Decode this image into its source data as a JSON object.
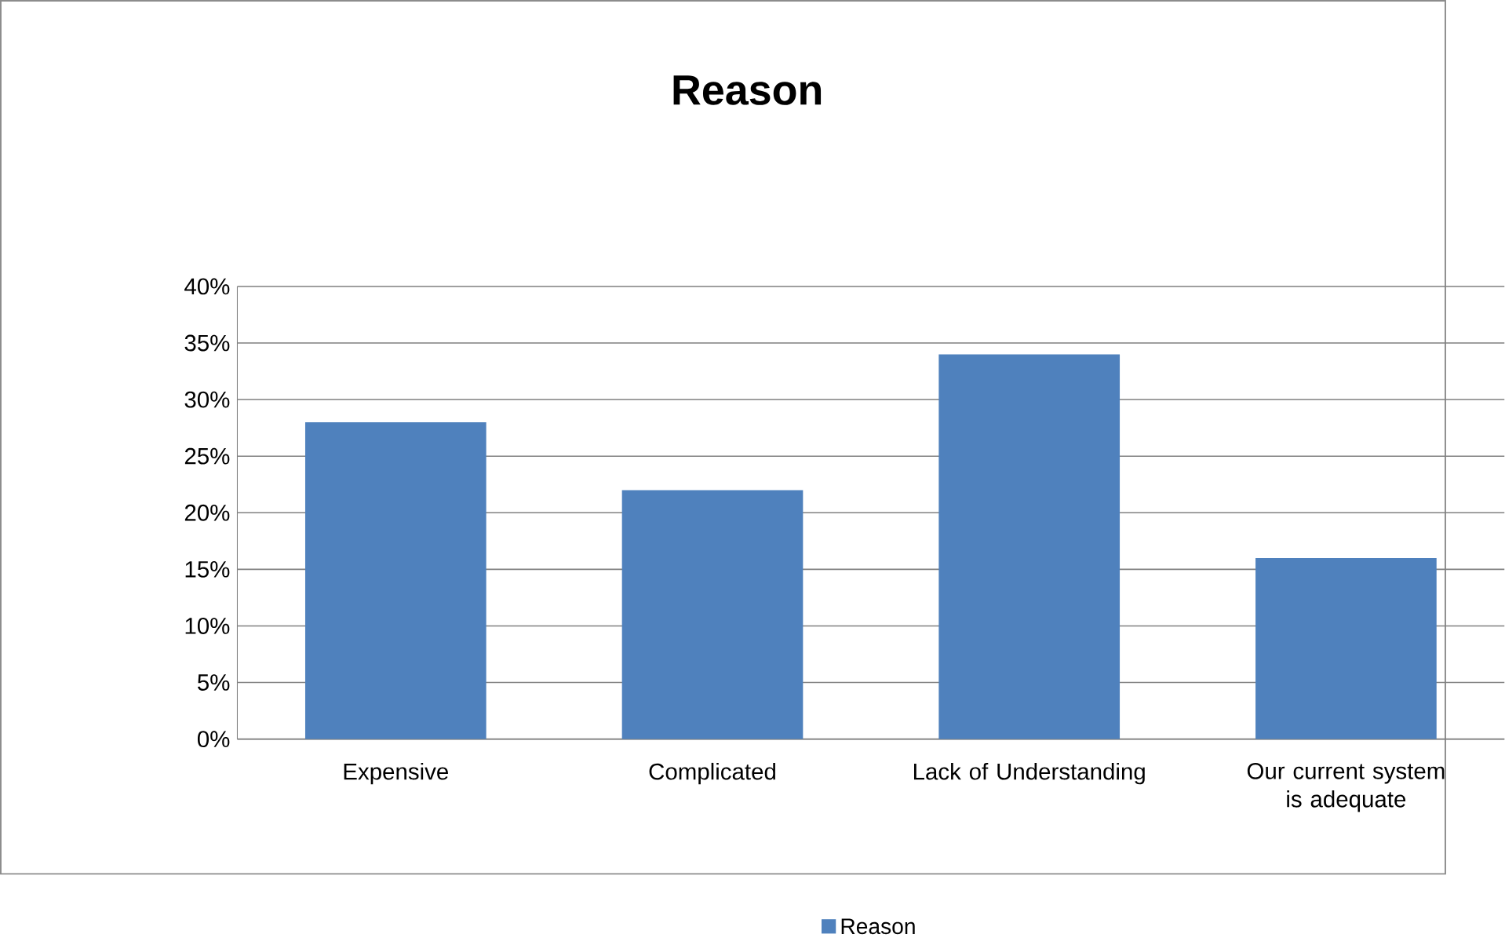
{
  "chart_data": {
    "type": "bar",
    "title": "Reason",
    "categories": [
      "Expensive",
      "Complicated",
      "Lack of Understanding",
      "Our current system is adequate"
    ],
    "series": [
      {
        "name": "Reason",
        "color": "#4f81bd",
        "values": [
          28,
          22,
          34,
          16
        ]
      }
    ],
    "ylim": [
      0,
      40
    ],
    "yticks": [
      {
        "value": 0,
        "label": "0%"
      },
      {
        "value": 5,
        "label": "5%"
      },
      {
        "value": 10,
        "label": "10%"
      },
      {
        "value": 15,
        "label": "15%"
      },
      {
        "value": 20,
        "label": "20%"
      },
      {
        "value": 25,
        "label": "25%"
      },
      {
        "value": 30,
        "label": "30%"
      },
      {
        "value": 35,
        "label": "35%"
      },
      {
        "value": 40,
        "label": "40%"
      }
    ],
    "grid": "y",
    "legend": "bottom"
  }
}
